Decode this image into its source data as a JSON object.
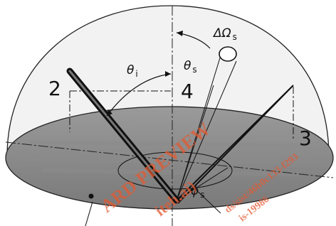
{
  "labels": {
    "theta_i": {
      "symbol": "θ",
      "subscript": "i"
    },
    "theta_s": {
      "symbol": "θ",
      "subscript": "s"
    },
    "delta_omega_s": {
      "symbol": "ΔΩ",
      "subscript": "s"
    },
    "phi_s": {
      "symbol": "ϕ",
      "subscript": "s"
    },
    "item_2": "2",
    "item_3": "3",
    "item_4": "4"
  },
  "watermark": [
    "ARD PREVIEW",
    "iteh.ai)",
    "ds/sist/46b0c133-f293",
    "is-19986"
  ]
}
